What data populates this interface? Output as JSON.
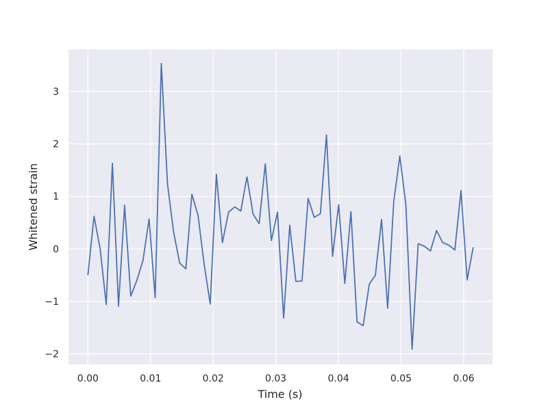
{
  "chart_data": {
    "type": "line",
    "xlabel": "Time (s)",
    "ylabel": "Whitened strain",
    "xlim": [
      -0.0031,
      0.0646
    ],
    "ylim": [
      -2.2,
      3.8
    ],
    "x_ticks": [
      0.0,
      0.01,
      0.02,
      0.03,
      0.04,
      0.05,
      0.06
    ],
    "x_tick_labels": [
      "0.00",
      "0.01",
      "0.02",
      "0.03",
      "0.04",
      "0.05",
      "0.06"
    ],
    "y_ticks": [
      -2,
      -1,
      0,
      1,
      2,
      3
    ],
    "y_tick_labels": [
      "−2",
      "−1",
      "0",
      "1",
      "2",
      "3"
    ],
    "grid": true,
    "background": "#eaeaf2",
    "grid_color": "#ffffff",
    "series": [
      {
        "color": "#4c72b0",
        "x": [
          0.0,
          0.00098,
          0.00195,
          0.00293,
          0.00391,
          0.00488,
          0.00586,
          0.00684,
          0.00781,
          0.00879,
          0.00977,
          0.01074,
          0.01172,
          0.0127,
          0.01367,
          0.01465,
          0.01563,
          0.0166,
          0.01758,
          0.01855,
          0.01953,
          0.02051,
          0.02148,
          0.02246,
          0.02344,
          0.02441,
          0.02539,
          0.02637,
          0.02734,
          0.02832,
          0.0293,
          0.03027,
          0.03125,
          0.03223,
          0.0332,
          0.03418,
          0.03516,
          0.03613,
          0.03711,
          0.03809,
          0.03906,
          0.04004,
          0.04102,
          0.04199,
          0.04297,
          0.04395,
          0.04492,
          0.0459,
          0.04688,
          0.04785,
          0.04883,
          0.0498,
          0.05078,
          0.05176,
          0.05273,
          0.05371,
          0.05469,
          0.05566,
          0.05664,
          0.05762,
          0.05859,
          0.05957,
          0.06055,
          0.06152
        ],
        "y": [
          -0.5,
          0.62,
          0.0,
          -1.06,
          1.63,
          -1.09,
          0.83,
          -0.9,
          -0.6,
          -0.22,
          0.57,
          -0.93,
          3.53,
          1.24,
          0.33,
          -0.27,
          -0.38,
          1.04,
          0.64,
          -0.29,
          -1.05,
          1.42,
          0.12,
          0.7,
          0.8,
          0.72,
          1.37,
          0.66,
          0.48,
          1.62,
          0.16,
          0.7,
          -1.32,
          0.45,
          -0.62,
          -0.61,
          0.96,
          0.6,
          0.67,
          2.17,
          -0.14,
          0.84,
          -0.66,
          0.71,
          -1.39,
          -1.46,
          -0.67,
          -0.5,
          0.56,
          -1.13,
          0.9,
          1.77,
          0.83,
          -1.91,
          0.1,
          0.05,
          -0.04,
          0.35,
          0.12,
          0.07,
          -0.02,
          1.11,
          -0.59,
          0.03
        ]
      }
    ]
  }
}
